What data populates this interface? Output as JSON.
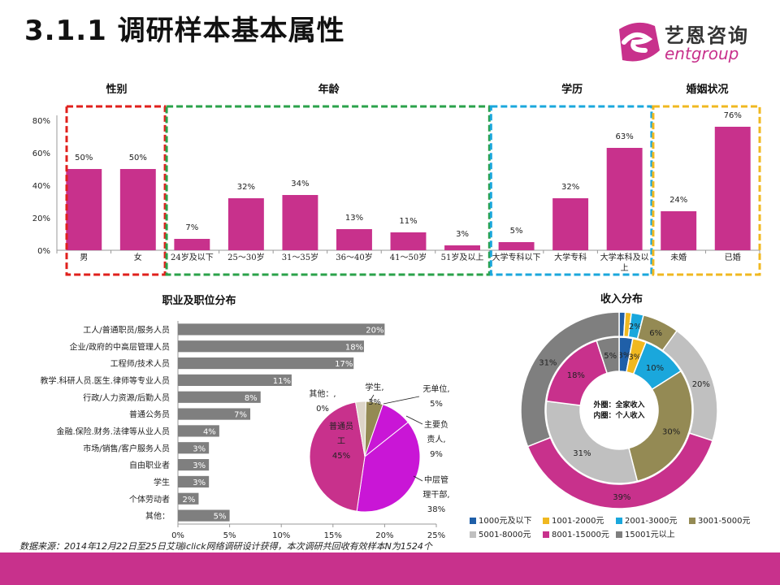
{
  "page": {
    "title": "3.1.1 调研样本基本属性",
    "logo_cn": "艺恩咨询",
    "logo_en": "entgroup",
    "source": "数据来源：2014年12月22日至25日艾瑞iclick网络调研设计获得，本次调研共回收有效样本N为1524个"
  },
  "chart_data": [
    {
      "type": "bar",
      "title": "性别 / 年龄 / 学历 / 婚姻状况",
      "group_titles": [
        "性别",
        "年龄",
        "学历",
        "婚姻状况"
      ],
      "categories": [
        "男",
        "女",
        "24岁及以下",
        "25～30岁",
        "31～35岁",
        "36～40岁",
        "41～50岁",
        "51岁及以上",
        "大学专科以下",
        "大学专科",
        "大学本科及以上",
        "未婚",
        "已婚"
      ],
      "values": [
        50,
        50,
        7,
        32,
        34,
        13,
        11,
        3,
        5,
        32,
        63,
        24,
        76
      ],
      "value_labels": [
        "50%",
        "50%",
        "7%",
        "32%",
        "34%",
        "13%",
        "11%",
        "3%",
        "5%",
        "32%",
        "63%",
        "24%",
        "76%"
      ],
      "groups": [
        {
          "name": "性别",
          "start": 0,
          "end": 1,
          "color": "#e0201c"
        },
        {
          "name": "年龄",
          "start": 2,
          "end": 7,
          "color": "#2aa24a"
        },
        {
          "name": "学历",
          "start": 8,
          "end": 10,
          "color": "#1aa7dc"
        },
        {
          "name": "婚姻状况",
          "start": 11,
          "end": 12,
          "color": "#f0b820"
        }
      ],
      "ylim": [
        0,
        80
      ],
      "yticks": [
        "0%",
        "20%",
        "40%",
        "60%",
        "80%"
      ],
      "bar_color": "#c8318c"
    },
    {
      "type": "bar",
      "orientation": "horizontal",
      "title": "职业及职位分布",
      "categories": [
        "工人/普通职员/服务人员",
        "企业/政府的中高层管理人员",
        "工程师/技术人员",
        "教学.科研人员.医生.律师等专业人员",
        "行政/人力资源/后勤人员",
        "普通公务员",
        "金融.保险.财务.法律等从业人员",
        "市场/销售/客户服务人员",
        "自由职业者",
        "学生",
        "个体劳动者",
        "其他："
      ],
      "values": [
        20,
        18,
        17,
        11,
        8,
        7,
        4,
        3,
        3,
        3,
        2,
        5
      ],
      "value_labels": [
        "20%",
        "18%",
        "17%",
        "11%",
        "8%",
        "7%",
        "4%",
        "3%",
        "3%",
        "3%",
        "2%",
        "5%"
      ],
      "xlim": [
        0,
        25
      ],
      "xticks": [
        "0%",
        "5%",
        "10%",
        "15%",
        "20%",
        "25%"
      ],
      "bar_color": "#7f7f7f"
    },
    {
      "type": "pie",
      "labels": [
        "普通员工",
        "中层管理干部",
        "主要负责人",
        "无单位",
        "学生",
        "其他："
      ],
      "display_labels": [
        "普通员\n工\n45%",
        "中层管\n理干部,\n38%",
        "主要负\n责人,\n9%",
        "无单位,\n5%",
        "学生,\n3%",
        "其他：,\n0%"
      ],
      "values": [
        45,
        38,
        9,
        5,
        3,
        0
      ],
      "colors": [
        "#c8318c",
        "#c916d6",
        "#c916d6",
        "#948a54",
        "#ddd5c8",
        "#ffffff"
      ]
    },
    {
      "type": "pie",
      "subtype": "donut",
      "title": "收入分布",
      "center_label": [
        "外圈：全家收入",
        "内圈：个人收入"
      ],
      "categories": [
        "1000元及以下",
        "1001-2000元",
        "2001-3000元",
        "3001-5000元",
        "5001-8000元",
        "8001-15000元",
        "15001元以上"
      ],
      "colors": [
        "#1f5fa8",
        "#f0b820",
        "#1aa7dc",
        "#948a54",
        "#c0c0c0",
        "#c8318c",
        "#7f7f7f"
      ],
      "series": [
        {
          "ring": "outer",
          "values": [
            1,
            1,
            2,
            6,
            20,
            39,
            31
          ],
          "value_labels": [
            "",
            "",
            "2%",
            "6%",
            "20%",
            "39%",
            "31%"
          ]
        },
        {
          "ring": "inner",
          "values": [
            3,
            3,
            10,
            30,
            31,
            18,
            5
          ],
          "value_labels": [
            "3%",
            "3%",
            "10%",
            "30%",
            "31%",
            "18%",
            "5%"
          ]
        }
      ]
    }
  ]
}
